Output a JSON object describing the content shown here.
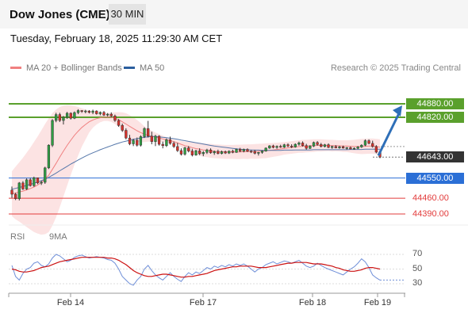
{
  "header": {
    "title": "Dow Jones (CME)",
    "timeframe": "30 MIN"
  },
  "datetime": "Tuesday, February 18, 2025 11:29:30 AM CET",
  "legend": {
    "ma20_label": "MA 20 + Bollinger Bands",
    "ma50_label": "MA 50",
    "research": "Research © 2025 Trading Central"
  },
  "rsi_legend": {
    "rsi_label": "RSI",
    "ma9_label": "9MA"
  },
  "colors": {
    "green": "#5aa02c",
    "blue": "#2b6fd6",
    "red": "#e23b3b",
    "dark": "#333333",
    "up_candle": "#2f9e44",
    "down_candle": "#d8312b",
    "band_fill": "#fbd9d9",
    "ma20": "#f08080",
    "ma50": "#5577aa",
    "rsi": "#6f8fd8",
    "rsi_ma": "#cc1111",
    "arrow": "#2e6fb8"
  },
  "chart_data": {
    "type": "candlestick",
    "price_levels": [
      {
        "value": "44880.00",
        "kind": "resistance",
        "color": "green"
      },
      {
        "value": "44820.00",
        "kind": "resistance",
        "color": "green"
      },
      {
        "value": "44643.00",
        "kind": "current",
        "color": "dark"
      },
      {
        "value": "44550.00",
        "kind": "pivot",
        "color": "blue"
      },
      {
        "value": "44460.00",
        "kind": "support",
        "color": "red"
      },
      {
        "value": "44390.00",
        "kind": "support",
        "color": "red"
      }
    ],
    "x_labels": [
      "Feb 14",
      "Feb 17",
      "Feb 18",
      "Feb 19"
    ],
    "rsi_levels": [
      "70",
      "50",
      "30"
    ],
    "candles": [
      [
        44496,
        44512,
        44462,
        44478
      ],
      [
        44478,
        44484,
        44452,
        44458
      ],
      [
        44458,
        44532,
        44450,
        44528
      ],
      [
        44528,
        44536,
        44497,
        44501
      ],
      [
        44501,
        44548,
        44497,
        44542
      ],
      [
        44542,
        44550,
        44512,
        44516
      ],
      [
        44516,
        44556,
        44511,
        44551
      ],
      [
        44551,
        44552,
        44523,
        44528
      ],
      [
        44528,
        44538,
        44519,
        44531
      ],
      [
        44531,
        44600,
        44524,
        44595
      ],
      [
        44595,
        44700,
        44590,
        44696
      ],
      [
        44696,
        44812,
        44688,
        44806
      ],
      [
        44806,
        44840,
        44798,
        44832
      ],
      [
        44832,
        44840,
        44799,
        44806
      ],
      [
        44806,
        44826,
        44788,
        44820
      ],
      [
        44820,
        44844,
        44813,
        44838
      ],
      [
        44838,
        44842,
        44810,
        44816
      ],
      [
        44816,
        44846,
        44812,
        44841
      ],
      [
        44841,
        44856,
        44834,
        44850
      ],
      [
        44850,
        44852,
        44840,
        44846
      ],
      [
        44846,
        44853,
        44838,
        44848
      ],
      [
        44848,
        44852,
        44837,
        44842
      ],
      [
        44842,
        44854,
        44834,
        44848
      ],
      [
        44848,
        44851,
        44832,
        44836
      ],
      [
        44836,
        44846,
        44829,
        44842
      ],
      [
        44842,
        44848,
        44826,
        44830
      ],
      [
        44830,
        44839,
        44824,
        44834
      ],
      [
        44834,
        44842,
        44821,
        44826
      ],
      [
        44826,
        44832,
        44800,
        44806
      ],
      [
        44806,
        44812,
        44778,
        44784
      ],
      [
        44784,
        44792,
        44755,
        44762
      ],
      [
        44762,
        44771,
        44722,
        44728
      ],
      [
        44728,
        44742,
        44696,
        44702
      ],
      [
        44702,
        44724,
        44692,
        44718
      ],
      [
        44718,
        44730,
        44690,
        44696
      ],
      [
        44696,
        44740,
        44690,
        44734
      ],
      [
        44734,
        44776,
        44728,
        44770
      ],
      [
        44770,
        44804,
        44730,
        44736
      ],
      [
        44736,
        44756,
        44700,
        44712
      ],
      [
        44712,
        44742,
        44692,
        44736
      ],
      [
        44736,
        44740,
        44694,
        44700
      ],
      [
        44700,
        44712,
        44682,
        44694
      ],
      [
        44694,
        44726,
        44688,
        44720
      ],
      [
        44720,
        44734,
        44698,
        44704
      ],
      [
        44704,
        44712,
        44684,
        44690
      ],
      [
        44690,
        44706,
        44666,
        44672
      ],
      [
        44672,
        44682,
        44650,
        44656
      ],
      [
        44656,
        44689,
        44650,
        44684
      ],
      [
        44684,
        44692,
        44664,
        44670
      ],
      [
        44670,
        44680,
        44646,
        44652
      ],
      [
        44652,
        44676,
        44649,
        44671
      ],
      [
        44671,
        44682,
        44652,
        44658
      ],
      [
        44658,
        44670,
        44647,
        44664
      ],
      [
        44664,
        44680,
        44657,
        44675
      ],
      [
        44675,
        44682,
        44658,
        44662
      ],
      [
        44662,
        44672,
        44653,
        44668
      ],
      [
        44668,
        44676,
        44655,
        44659
      ],
      [
        44659,
        44672,
        44655,
        44667
      ],
      [
        44667,
        44672,
        44657,
        44661
      ],
      [
        44661,
        44673,
        44657,
        44669
      ],
      [
        44669,
        44676,
        44660,
        44664
      ],
      [
        44664,
        44681,
        44662,
        44678
      ],
      [
        44678,
        44684,
        44665,
        44670
      ],
      [
        44670,
        44681,
        44664,
        44677
      ],
      [
        44677,
        44682,
        44666,
        44669
      ],
      [
        44669,
        44674,
        44661,
        44668
      ],
      [
        44668,
        44675,
        44655,
        44660
      ],
      [
        44660,
        44666,
        44650,
        44664
      ],
      [
        44664,
        44673,
        44658,
        44670
      ],
      [
        44670,
        44686,
        44667,
        44683
      ],
      [
        44683,
        44696,
        44680,
        44693
      ],
      [
        44693,
        44698,
        44682,
        44686
      ],
      [
        44686,
        44695,
        44680,
        44691
      ],
      [
        44691,
        44698,
        44684,
        44687
      ],
      [
        44687,
        44702,
        44684,
        44698
      ],
      [
        44698,
        44704,
        44688,
        44692
      ],
      [
        44692,
        44700,
        44683,
        44688
      ],
      [
        44688,
        44704,
        44685,
        44700
      ],
      [
        44700,
        44712,
        44694,
        44706
      ],
      [
        44706,
        44713,
        44690,
        44694
      ],
      [
        44694,
        44702,
        44676,
        44682
      ],
      [
        44682,
        44696,
        44679,
        44692
      ],
      [
        44692,
        44712,
        44688,
        44708
      ],
      [
        44708,
        44714,
        44694,
        44699
      ],
      [
        44699,
        44706,
        44686,
        44690
      ],
      [
        44690,
        44702,
        44686,
        44698
      ],
      [
        44698,
        44704,
        44683,
        44686
      ],
      [
        44686,
        44694,
        44680,
        44690
      ],
      [
        44690,
        44696,
        44682,
        44684
      ],
      [
        44684,
        44693,
        44680,
        44689
      ],
      [
        44689,
        44694,
        44681,
        44683
      ],
      [
        44683,
        44688,
        44676,
        44685
      ],
      [
        44685,
        44690,
        44677,
        44679
      ],
      [
        44679,
        44686,
        44676,
        44682
      ],
      [
        44682,
        44692,
        44678,
        44688
      ],
      [
        44688,
        44700,
        44684,
        44696
      ],
      [
        44696,
        44722,
        44692,
        44716
      ],
      [
        44716,
        44722,
        44700,
        44704
      ],
      [
        44704,
        44716,
        44685,
        44690
      ],
      [
        44690,
        44696,
        44660,
        44665
      ],
      [
        44665,
        44670,
        44638,
        44643
      ]
    ],
    "ma20": [
      44480,
      44483,
      44488,
      44492,
      44497,
      44503,
      44510,
      44519,
      44530,
      44545,
      44562,
      44588,
      44615,
      44643,
      44670,
      44695,
      44718,
      44740,
      44758,
      44775,
      44788,
      44800,
      44808,
      44814,
      44818,
      44820,
      44821,
      44820,
      44816,
      44810,
      44800,
      44790,
      44780,
      44770,
      44760,
      44752,
      44745,
      44740,
      44736,
      44732,
      44728,
      44724,
      44720,
      44716,
      44712,
      44706,
      44700,
      44694,
      44690,
      44685,
      44681,
      44678,
      44675,
      44673,
      44671,
      44669,
      44668,
      44667,
      44666,
      44666,
      44666,
      44666,
      44666,
      44667,
      44667,
      44668,
      44668,
      44669,
      44670,
      44671,
      44673,
      44675,
      44677,
      44679,
      44682,
      44684,
      44686,
      44688,
      44690,
      44691,
      44692,
      44693,
      44694,
      44695,
      44695,
      44695,
      44695,
      44694,
      44694,
      44693,
      44692,
      44692,
      44691,
      44690,
      44690,
      44690,
      44691,
      44692,
      44692,
      44690,
      44687
    ],
    "bb_upper": [
      44580,
      44600,
      44620,
      44640,
      44662,
      44685,
      44710,
      44735,
      44762,
      44790,
      44815,
      44838,
      44855,
      44866,
      44872,
      44874,
      44873,
      44870,
      44866,
      44860,
      44855,
      44848,
      44842,
      44840,
      44838,
      44836,
      44838,
      44840,
      44842,
      44843,
      44842,
      44838,
      44830,
      44820,
      44808,
      44795,
      44780,
      44768,
      44760,
      44752,
      44745,
      44738,
      44732,
      44726,
      44721,
      44717,
      44714,
      44712,
      44711,
      44710,
      44709,
      44707,
      44705,
      44703,
      44702,
      44700,
      44699,
      44698,
      44697,
      44697,
      44697,
      44698,
      44698,
      44699,
      44700,
      44700,
      44701,
      44702,
      44703,
      44704,
      44705,
      44706,
      44707,
      44708,
      44710,
      44712,
      44714,
      44716,
      44718,
      44720,
      44720,
      44721,
      44722,
      44722,
      44722,
      44721,
      44720,
      44720,
      44719,
      44718,
      44718,
      44718,
      44719,
      44720,
      44722,
      44724,
      44725,
      44726,
      44726,
      44724,
      44722
    ],
    "bb_lower": [
      44380,
      44366,
      44356,
      44344,
      44332,
      44321,
      44310,
      44303,
      44298,
      44300,
      44309,
      44338,
      44375,
      44420,
      44468,
      44516,
      44563,
      44610,
      44650,
      44690,
      44721,
      44752,
      44774,
      44788,
      44798,
      44804,
      44804,
      44800,
      44790,
      44777,
      44758,
      44742,
      44730,
      44720,
      44712,
      44709,
      44710,
      44712,
      44712,
      44712,
      44711,
      44710,
      44708,
      44706,
      44703,
      44695,
      44686,
      44676,
      44669,
      44660,
      44653,
      44649,
      44645,
      44643,
      44640,
      44638,
      44637,
      44636,
      44635,
      44635,
      44635,
      44634,
      44634,
      44635,
      44634,
      44636,
      44635,
      44636,
      44637,
      44638,
      44641,
      44644,
      44647,
      44650,
      44654,
      44656,
      44658,
      44660,
      44662,
      44662,
      44664,
      44665,
      44666,
      44668,
      44668,
      44669,
      44670,
      44668,
      44669,
      44668,
      44666,
      44666,
      44663,
      44660,
      44658,
      44656,
      44657,
      44658,
      44658,
      44656,
      44652
    ],
    "ma50": [
      44500,
      44504,
      44508,
      44512,
      44517,
      44522,
      44527,
      44532,
      44538,
      44545,
      44553,
      44562,
      44572,
      44582,
      44592,
      44602,
      44612,
      44621,
      44630,
      44639,
      44647,
      44655,
      44662,
      44669,
      44676,
      44682,
      44688,
      44694,
      44700,
      44705,
      44710,
      44714,
      44718,
      44722,
      44725,
      44728,
      44731,
      44733,
      44735,
      44734,
      44733,
      44731,
      44729,
      44727,
      44725,
      44722,
      44719,
      44716,
      44713,
      44710,
      44707,
      44704,
      44701,
      44698,
      44695,
      44692,
      44690,
      44688,
      44686,
      44684,
      44682,
      44680,
      44678,
      44677,
      44676,
      44675,
      44674,
      44674,
      44673,
      44673,
      44673,
      44673,
      44673,
      44673,
      44674,
      44674,
      44674,
      44675,
      44675,
      44675,
      44675,
      44675,
      44676,
      44676,
      44676,
      44676,
      44676,
      44676,
      44676,
      44676,
      44676,
      44676,
      44677,
      44677,
      44677,
      44677,
      44678,
      44678,
      44678,
      44678,
      44678
    ],
    "rsi": [
      55,
      40,
      35,
      44,
      50,
      52,
      58,
      60,
      55,
      53,
      57,
      65,
      70,
      68,
      64,
      60,
      62,
      66,
      68,
      69,
      67,
      65,
      66,
      67,
      66,
      65,
      63,
      62,
      58,
      50,
      40,
      35,
      30,
      28,
      35,
      40,
      50,
      55,
      48,
      42,
      38,
      35,
      40,
      45,
      40,
      36,
      33,
      40,
      45,
      42,
      46,
      44,
      48,
      52,
      50,
      54,
      52,
      55,
      53,
      56,
      54,
      57,
      55,
      57,
      54,
      50,
      46,
      50,
      52,
      56,
      58,
      60,
      57,
      59,
      61,
      60,
      58,
      60,
      62,
      58,
      54,
      52,
      54,
      58,
      55,
      52,
      50,
      48,
      46,
      44,
      42,
      46,
      50,
      53,
      58,
      64,
      60,
      52,
      42,
      38,
      35
    ],
    "rsi_ma": [
      50,
      49,
      47,
      46,
      46,
      47,
      48,
      50,
      52,
      53,
      54,
      56,
      58,
      60,
      61,
      62,
      63,
      64,
      65,
      66,
      66,
      66,
      66,
      66,
      66,
      66,
      65,
      65,
      64,
      62,
      59,
      56,
      52,
      48,
      45,
      43,
      41,
      40,
      40,
      41,
      42,
      43,
      43,
      42,
      41,
      40,
      39,
      39,
      40,
      40,
      41,
      42,
      43,
      44,
      46,
      48,
      49,
      50,
      51,
      52,
      53,
      53,
      54,
      54,
      54,
      54,
      53,
      52,
      52,
      52,
      53,
      54,
      55,
      56,
      57,
      58,
      58,
      59,
      59,
      59,
      59,
      58,
      57,
      57,
      57,
      56,
      55,
      54,
      52,
      51,
      49,
      48,
      47,
      47,
      48,
      49,
      51,
      52,
      52,
      51,
      50
    ]
  }
}
